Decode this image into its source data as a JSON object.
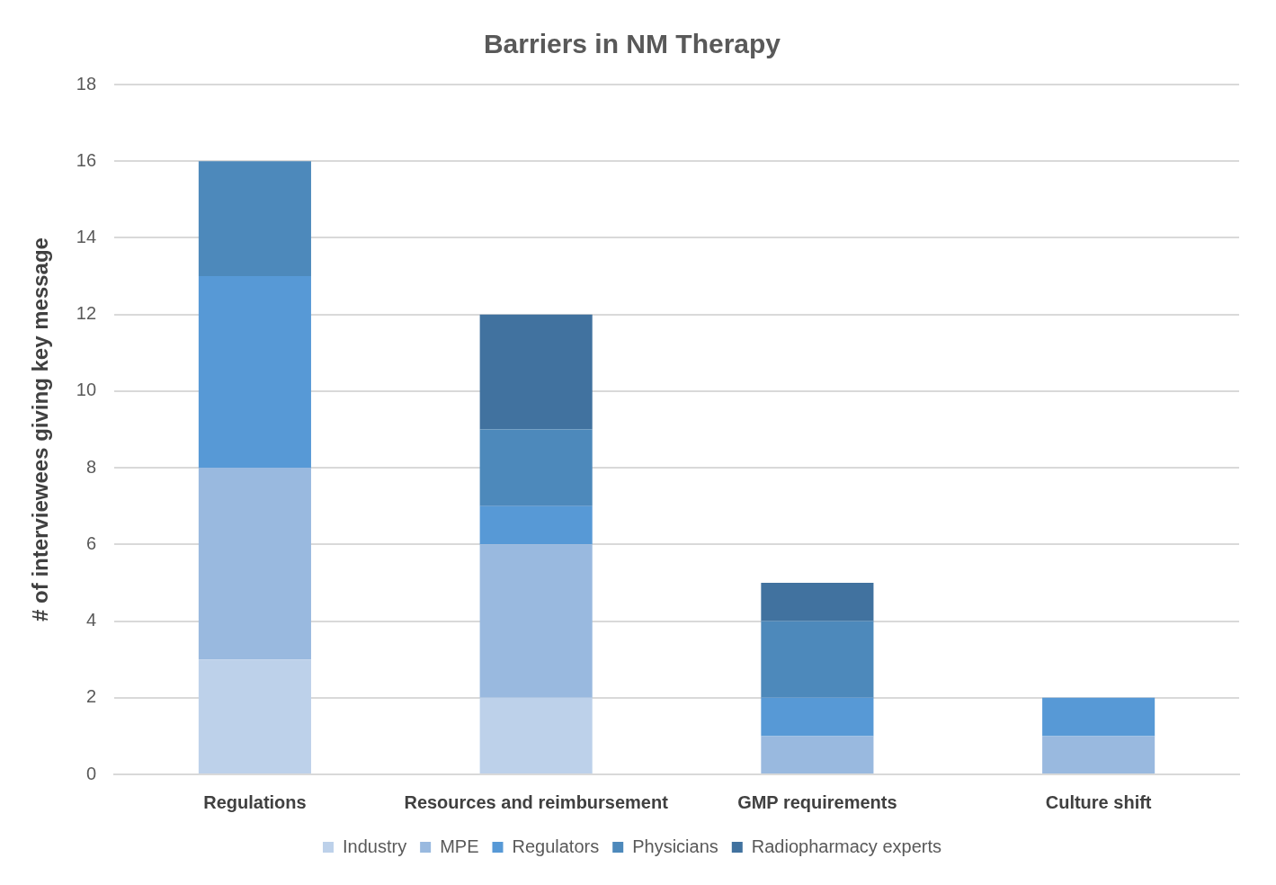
{
  "chart_data": {
    "type": "bar",
    "title": "Barriers in NM Therapy",
    "ylabel": "# of interviewees giving key message",
    "categories": [
      "Regulations",
      "Resources and reimbursement",
      "GMP requirements",
      "Culture shift"
    ],
    "stacked": true,
    "ylim": [
      0,
      18
    ],
    "yticks": [
      0,
      2,
      4,
      6,
      8,
      10,
      12,
      14,
      16,
      18
    ],
    "grid": "y",
    "legend": "bottom",
    "series": [
      {
        "name": "Industry",
        "color": "#bdd1ea",
        "values": [
          3,
          2,
          0,
          0
        ]
      },
      {
        "name": "MPE",
        "color": "#99b9df",
        "values": [
          5,
          4,
          1,
          1
        ]
      },
      {
        "name": "Regulators",
        "color": "#5799d6",
        "values": [
          5,
          1,
          1,
          1
        ]
      },
      {
        "name": "Physicians",
        "color": "#4d89bb",
        "values": [
          3,
          2,
          2,
          0
        ]
      },
      {
        "name": "Radiopharmacy experts",
        "color": "#41729f",
        "values": [
          0,
          3,
          1,
          0
        ]
      }
    ]
  }
}
